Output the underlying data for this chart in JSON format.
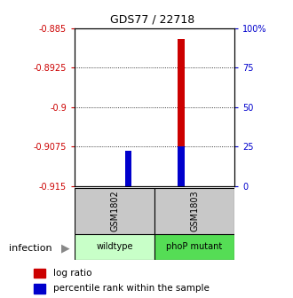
{
  "title": "GDS77 / 22718",
  "samples": [
    "GSM1802",
    "GSM1803"
  ],
  "groups": [
    "wildtype",
    "phoP mutant"
  ],
  "ylim_left": [
    -0.915,
    -0.885
  ],
  "yticks_left": [
    -0.915,
    -0.9075,
    -0.9,
    -0.8925,
    -0.885
  ],
  "ytick_labels_left": [
    "-0.915",
    "-0.9075",
    "-0.9",
    "-0.8925",
    "-0.885"
  ],
  "yticks_right_pct": [
    0,
    25,
    50,
    75,
    100
  ],
  "ytick_labels_right": [
    "0",
    "25",
    "50",
    "75",
    "100%"
  ],
  "bar_base": -0.915,
  "log_ratio_tops": [
    -0.9085,
    -0.887
  ],
  "percentile_tops": [
    -0.9082,
    -0.9075
  ],
  "bar_width": 0.12,
  "bar_color_red": "#cc0000",
  "bar_color_blue": "#0000cc",
  "left_tick_color": "#cc0000",
  "right_tick_color": "#0000cc",
  "infection_label": "infection",
  "legend_items": [
    {
      "color": "#cc0000",
      "label": "log ratio"
    },
    {
      "color": "#0000cc",
      "label": "percentile rank within the sample"
    }
  ],
  "sample_box_color": "#c8c8c8",
  "group1_color": "#c8ffc8",
  "group2_color": "#55dd55",
  "title_fontsize": 9,
  "tick_fontsize": 7,
  "legend_fontsize": 7.5
}
